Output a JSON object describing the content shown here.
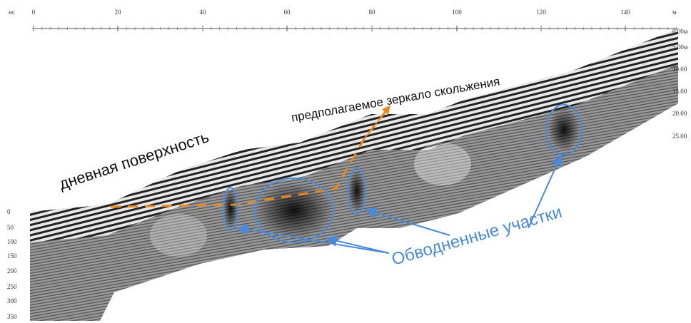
{
  "units": {
    "time": "нс",
    "distance": "м"
  },
  "top_axis": {
    "labels": [
      0,
      20,
      40,
      60,
      80,
      100,
      120,
      140
    ]
  },
  "left_axis": {
    "labels": [
      0,
      50,
      100,
      150,
      200,
      250,
      300,
      350
    ]
  },
  "right_axis": {
    "labels": [
      "0.00м",
      "5.00м",
      "10.00",
      "15.00",
      "20.00",
      "25.00"
    ]
  },
  "annotations": {
    "surface": "дневная поверхность",
    "slip_plane": "предполагаемое зеркало скольжения",
    "watered": "Обводненные участки"
  }
}
